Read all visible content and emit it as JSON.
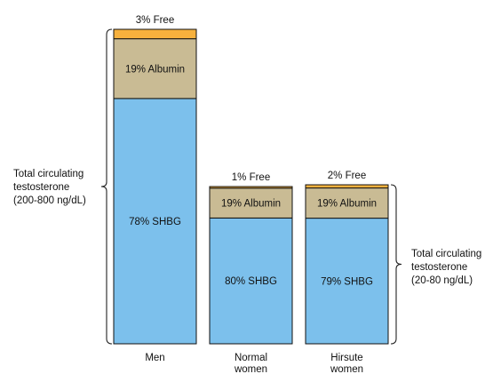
{
  "chart_data": {
    "type": "bar",
    "stacked": true,
    "categories": [
      "Men",
      "Normal women",
      "Hirsute women"
    ],
    "series": [
      {
        "key": "shbg",
        "values": [
          78,
          80,
          79
        ],
        "labels": [
          "78% SHBG",
          "80% SHBG",
          "79% SHBG"
        ],
        "color": "#7cc0ec"
      },
      {
        "key": "albumin",
        "values": [
          19,
          19,
          19
        ],
        "labels": [
          "19% Albumin",
          "19% Albumin",
          "19% Albumin"
        ],
        "color": "#c9bb94"
      },
      {
        "key": "free",
        "values": [
          3,
          1,
          2
        ],
        "labels": [
          "3% Free",
          "1% Free",
          "2% Free"
        ],
        "color": "#f7b13d"
      }
    ],
    "totals_note": [
      {
        "lines": [
          "Total circulating",
          "testosterone",
          "(200-800 ng/dL)"
        ]
      },
      {
        "lines": [
          "Total circulating",
          "testosterone",
          "(20-80 ng/dL)"
        ]
      }
    ],
    "category_lines": [
      [
        "Men"
      ],
      [
        "Normal",
        "women"
      ],
      [
        "Hirsute",
        "women"
      ]
    ]
  }
}
